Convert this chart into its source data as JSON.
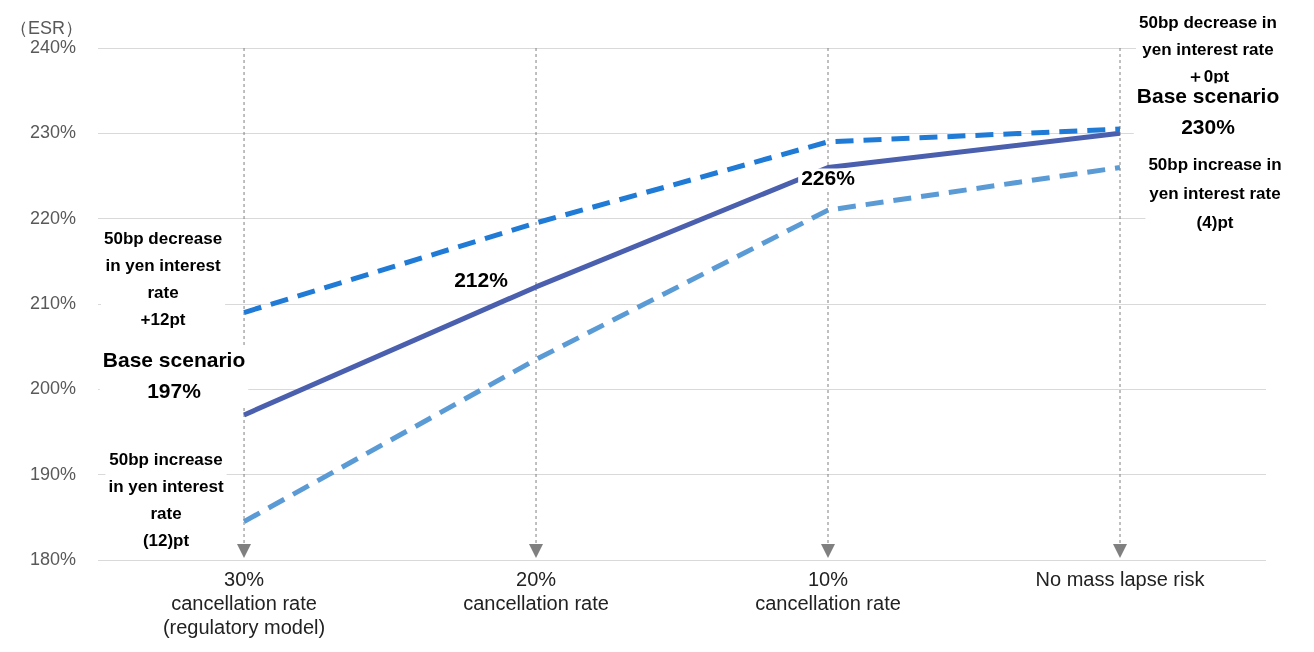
{
  "chart_data": {
    "type": "line",
    "ylabel": "（ESR）",
    "categories": [
      "30%\ncancellation rate\n(regulatory model)",
      "20%\ncancellation rate",
      "10%\ncancellation rate",
      "No mass lapse risk"
    ],
    "series": [
      {
        "color": "#1f7bd6",
        "line_style": "dashed",
        "values": [
          209,
          219.5,
          229,
          230.5
        ]
      },
      {
        "color": "#4a5fae",
        "line_style": "solid",
        "values": [
          197,
          212,
          226,
          230
        ]
      },
      {
        "color": "#5b9bd5",
        "line_style": "dashed",
        "values": [
          184.5,
          203.5,
          221,
          226
        ]
      }
    ],
    "ylim": [
      180,
      240
    ],
    "yticks": [
      {
        "value": 180,
        "label": "180%"
      },
      {
        "value": 190,
        "label": "190%"
      },
      {
        "value": 200,
        "label": "200%"
      },
      {
        "value": 210,
        "label": "210%"
      },
      {
        "value": 220,
        "label": "220%"
      },
      {
        "value": 230,
        "label": "230%"
      },
      {
        "value": 240,
        "label": "240%"
      }
    ],
    "grid": "y",
    "legend": false,
    "marker": "none",
    "ref_lines": [
      {
        "axis": "x",
        "value": "30%\ncancellation rate\n(regulatory model)",
        "color": "#808080",
        "line_style": "dotted"
      },
      {
        "axis": "x",
        "value": "20%\ncancellation rate",
        "color": "#808080",
        "line_style": "dotted"
      },
      {
        "axis": "x",
        "value": "10%\ncancellation rate",
        "color": "#808080",
        "line_style": "dotted"
      },
      {
        "axis": "x",
        "value": "No mass lapse risk",
        "color": "#808080",
        "line_style": "dotted"
      }
    ],
    "annotations": [
      {
        "text": "50bp decrease\nin yen interest\nrate\n+12pt",
        "x": "30%\ncancellation rate\n(regulatory model)",
        "y": 209
      },
      {
        "text": "Base scenario\n197%",
        "x": "30%\ncancellation rate\n(regulatory model)",
        "y": 197
      },
      {
        "text": "50bp increase\nin yen interest\nrate\n(12)pt",
        "x": "30%\ncancellation rate\n(regulatory model)",
        "y": 184.5
      },
      {
        "text": "212%",
        "x": "20%\ncancellation rate",
        "y": 212
      },
      {
        "text": "226%",
        "x": "10%\ncancellation rate",
        "y": 226
      },
      "50bp decrease in\nyen interest rate\n＋0pt",
      {
        "text": "Base scenario\n230%",
        "x": "No mass lapse risk",
        "y": 230
      },
      {
        "text": "50bp increase in\nyen interest rate\n(4)pt",
        "x": "No mass lapse risk",
        "y": 226
      }
    ]
  }
}
